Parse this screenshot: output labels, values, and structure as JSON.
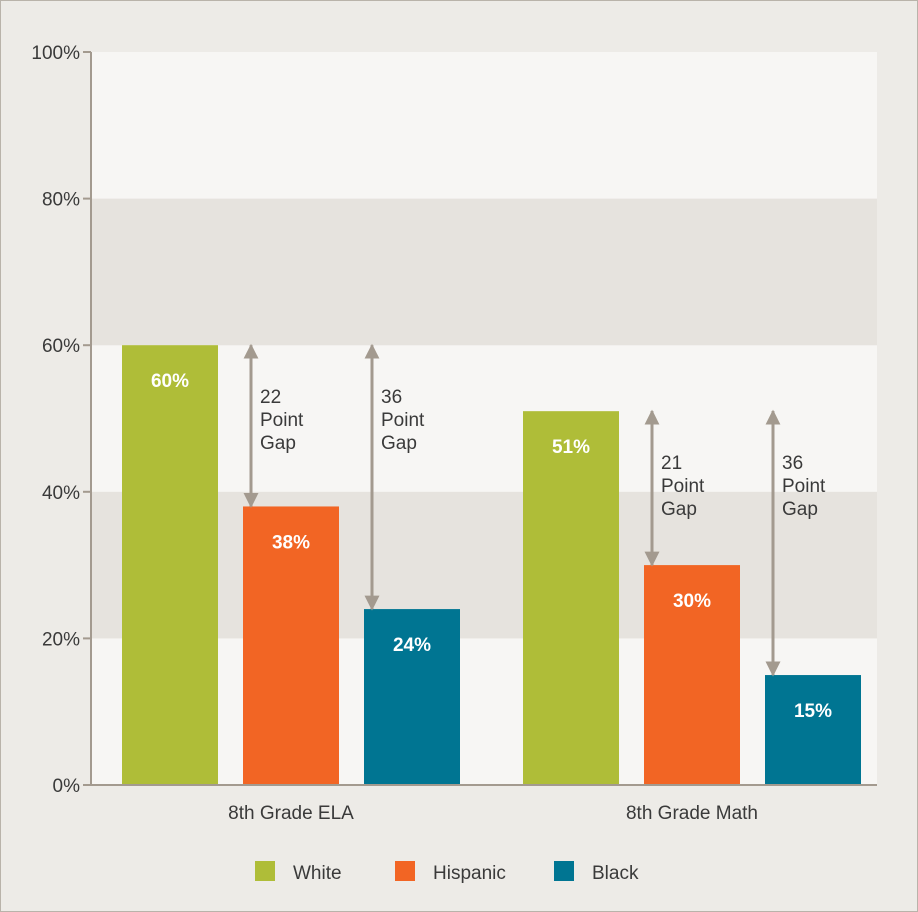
{
  "chart_data": {
    "type": "bar",
    "title": "",
    "xlabel": "",
    "ylabel": "",
    "ylim": [
      0,
      100
    ],
    "yticks": [
      "0%",
      "20%",
      "40%",
      "60%",
      "80%",
      "100%"
    ],
    "grid": "alternating bands",
    "categories": [
      "8th Grade ELA",
      "8th Grade Math"
    ],
    "series": [
      {
        "name": "White",
        "color": "#afbd38",
        "values": [
          60,
          51
        ],
        "labels": [
          "60%",
          "51%"
        ]
      },
      {
        "name": "Hispanic",
        "color": "#f26524",
        "values": [
          38,
          30
        ],
        "labels": [
          "38%",
          "30%"
        ]
      },
      {
        "name": "Black",
        "color": "#007592",
        "values": [
          24,
          15
        ],
        "labels": [
          "24%",
          "15%"
        ]
      }
    ],
    "gap_annotations": [
      {
        "category": 0,
        "from_series": 0,
        "to_series": 1,
        "lines": [
          "22",
          "Point",
          "Gap"
        ]
      },
      {
        "category": 0,
        "from_series": 0,
        "to_series": 2,
        "lines": [
          "36",
          "Point",
          "Gap"
        ]
      },
      {
        "category": 1,
        "from_series": 0,
        "to_series": 1,
        "lines": [
          "21",
          "Point",
          "Gap"
        ]
      },
      {
        "category": 1,
        "from_series": 0,
        "to_series": 2,
        "lines": [
          "36",
          "Point",
          "Gap"
        ]
      }
    ],
    "legend_position": "bottom-center",
    "colors": {
      "axis": "#a39a8f",
      "band_light": "#f7f6f4",
      "band_dark": "#e6e3de",
      "arrow": "#a39a8f"
    }
  }
}
